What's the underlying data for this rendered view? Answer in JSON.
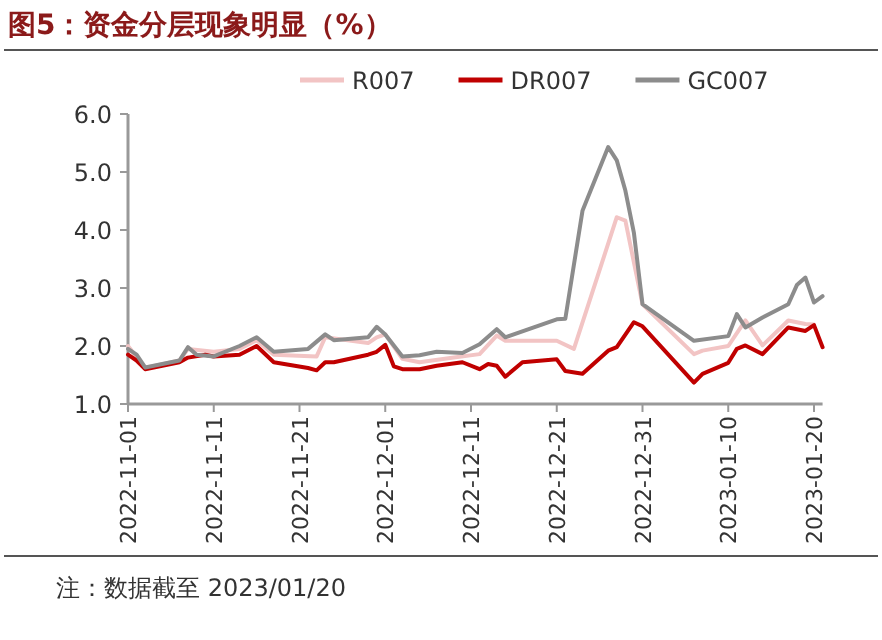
{
  "chart_data": {
    "type": "line",
    "title": "图5：资金分层现象明显（%）",
    "annotations": [
      "注：数据截至 2023/01/20"
    ],
    "legend": "top",
    "grid": false,
    "marker": "none",
    "line_style": "solid",
    "xlim": [
      "2022-11-01",
      "2023-01-21"
    ],
    "xticks": [
      "2022-11-01",
      "2022-11-11",
      "2022-11-21",
      "2022-12-01",
      "2022-12-11",
      "2022-12-21",
      "2022-12-31",
      "2023-01-10",
      "2023-01-20"
    ],
    "ylim": [
      1,
      6
    ],
    "yticks": [
      {
        "value": 1,
        "label": "1.0"
      },
      {
        "value": 2,
        "label": "2.0"
      },
      {
        "value": 3,
        "label": "3.0"
      },
      {
        "value": 4,
        "label": "4.0"
      },
      {
        "value": 5,
        "label": "5.0"
      },
      {
        "value": 6,
        "label": "6.0"
      }
    ],
    "series": [
      {
        "name": "R007",
        "color": "#f2c4c4",
        "x": [
          "2022-11-01",
          "2022-11-03",
          "2022-11-07",
          "2022-11-08",
          "2022-11-11",
          "2022-11-14",
          "2022-11-16",
          "2022-11-18",
          "2022-11-23",
          "2022-11-24",
          "2022-11-29",
          "2022-11-30",
          "2022-12-01",
          "2022-12-03",
          "2022-12-05",
          "2022-12-09",
          "2022-12-12",
          "2022-12-14",
          "2022-12-15",
          "2022-12-21",
          "2022-12-23",
          "2022-12-28",
          "2022-12-29",
          "2022-12-31",
          "2023-01-06",
          "2023-01-07",
          "2023-01-10",
          "2023-01-12",
          "2023-01-14",
          "2023-01-17",
          "2023-01-19",
          "2023-01-20"
        ],
        "values": [
          2.0,
          1.62,
          1.75,
          1.95,
          1.9,
          1.95,
          2.1,
          1.85,
          1.82,
          2.15,
          2.05,
          2.15,
          2.2,
          1.78,
          1.72,
          1.8,
          1.86,
          2.18,
          2.09,
          2.09,
          1.95,
          4.22,
          4.16,
          2.72,
          1.86,
          1.92,
          2.0,
          2.44,
          2.01,
          2.44,
          2.38,
          2.37
        ]
      },
      {
        "name": "DR007",
        "color": "#c00000",
        "x": [
          "2022-11-01",
          "2022-11-02",
          "2022-11-03",
          "2022-11-07",
          "2022-11-08",
          "2022-11-10",
          "2022-11-11",
          "2022-11-14",
          "2022-11-16",
          "2022-11-18",
          "2022-11-22",
          "2022-11-23",
          "2022-11-24",
          "2022-11-25",
          "2022-11-29",
          "2022-11-30",
          "2022-12-01",
          "2022-12-02",
          "2022-12-03",
          "2022-12-05",
          "2022-12-07",
          "2022-12-10",
          "2022-12-12",
          "2022-12-13",
          "2022-12-14",
          "2022-12-15",
          "2022-12-17",
          "2022-12-21",
          "2022-12-22",
          "2022-12-24",
          "2022-12-27",
          "2022-12-28",
          "2022-12-30",
          "2022-12-31",
          "2023-01-06",
          "2023-01-07",
          "2023-01-10",
          "2023-01-11",
          "2023-01-12",
          "2023-01-14",
          "2023-01-17",
          "2023-01-19",
          "2023-01-20",
          "2023-01-21"
        ],
        "values": [
          1.85,
          1.75,
          1.6,
          1.72,
          1.8,
          1.85,
          1.82,
          1.85,
          2.0,
          1.72,
          1.62,
          1.58,
          1.72,
          1.72,
          1.85,
          1.9,
          2.02,
          1.65,
          1.6,
          1.6,
          1.66,
          1.72,
          1.6,
          1.69,
          1.66,
          1.47,
          1.72,
          1.77,
          1.57,
          1.52,
          1.92,
          1.98,
          2.41,
          2.34,
          1.37,
          1.52,
          1.71,
          1.95,
          2.01,
          1.86,
          2.32,
          2.26,
          2.36,
          1.98
        ]
      },
      {
        "name": "GC007",
        "color": "#8c8c8c",
        "x": [
          "2022-11-01",
          "2022-11-02",
          "2022-11-03",
          "2022-11-07",
          "2022-11-08",
          "2022-11-09",
          "2022-11-11",
          "2022-11-14",
          "2022-11-16",
          "2022-11-18",
          "2022-11-22",
          "2022-11-24",
          "2022-11-25",
          "2022-11-29",
          "2022-11-30",
          "2022-12-01",
          "2022-12-03",
          "2022-12-05",
          "2022-12-07",
          "2022-12-10",
          "2022-12-12",
          "2022-12-14",
          "2022-12-15",
          "2022-12-21",
          "2022-12-22",
          "2022-12-24",
          "2022-12-27",
          "2022-12-28",
          "2022-12-29",
          "2022-12-30",
          "2022-12-31",
          "2023-01-06",
          "2023-01-10",
          "2023-01-11",
          "2023-01-12",
          "2023-01-14",
          "2023-01-17",
          "2023-01-18",
          "2023-01-19",
          "2023-01-20",
          "2023-01-21"
        ],
        "values": [
          1.95,
          1.85,
          1.63,
          1.75,
          1.98,
          1.85,
          1.82,
          2.0,
          2.15,
          1.9,
          1.95,
          2.2,
          2.1,
          2.15,
          2.33,
          2.2,
          1.82,
          1.84,
          1.9,
          1.88,
          2.03,
          2.29,
          2.15,
          2.46,
          2.47,
          4.33,
          5.43,
          5.2,
          4.68,
          3.95,
          2.72,
          2.09,
          2.17,
          2.55,
          2.32,
          2.49,
          2.72,
          3.05,
          3.18,
          2.75,
          2.86
        ]
      }
    ]
  }
}
